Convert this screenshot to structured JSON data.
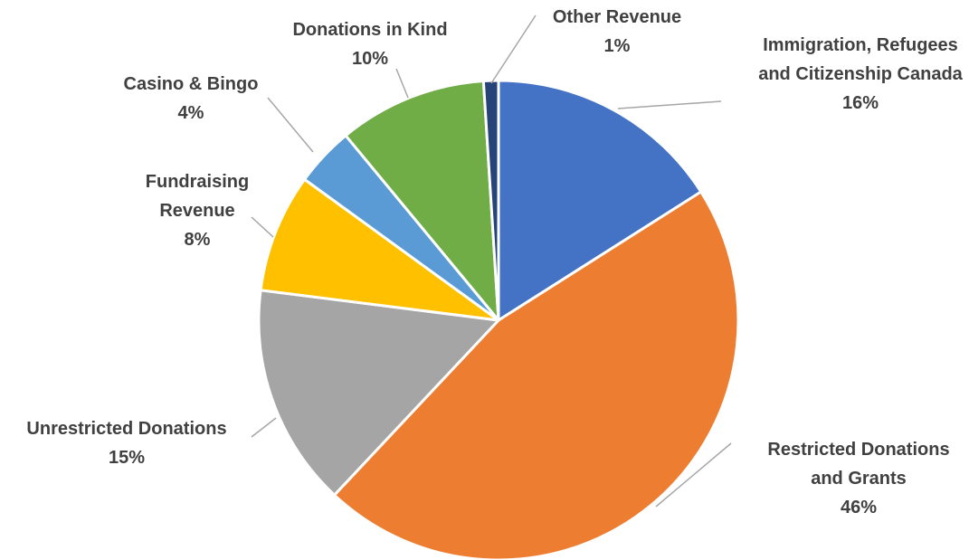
{
  "chart_data": {
    "type": "pie",
    "title": "",
    "start_angle_deg": 0,
    "direction": "clockwise",
    "slices": [
      {
        "label": "Immigration, Refugees and Citizenship Canada",
        "value": 16,
        "display": "16%",
        "color": "#4472c4"
      },
      {
        "label": "Restricted Donations and Grants",
        "value": 46,
        "display": "46%",
        "color": "#ed7d31"
      },
      {
        "label": "Unrestricted Donations",
        "value": 15,
        "display": "15%",
        "color": "#a5a5a5"
      },
      {
        "label": "Fundraising Revenue",
        "value": 8,
        "display": "8%",
        "color": "#ffc000"
      },
      {
        "label": "Casino & Bingo",
        "value": 4,
        "display": "4%",
        "color": "#5b9bd5"
      },
      {
        "label": "Donations in Kind",
        "value": 10,
        "display": "10%",
        "color": "#70ad47"
      },
      {
        "label": "Other Revenue",
        "value": 1,
        "display": "1%",
        "color": "#264478"
      }
    ],
    "legend": "none",
    "label_color": "#404040",
    "leader_line_color": "#a6a6a6"
  }
}
